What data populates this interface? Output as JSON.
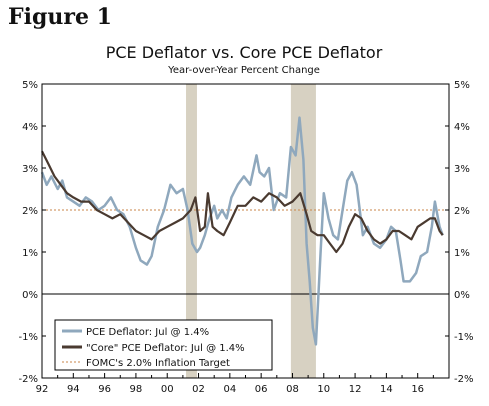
{
  "figure_label": "Figure 1",
  "chart_data": {
    "type": "line",
    "title": "PCE Deflator vs. Core PCE Deflator",
    "subtitle": "Year-over-Year Percent Change",
    "xlabel": "",
    "ylabel": "",
    "xlim": [
      1992,
      2018
    ],
    "ylim": [
      -2,
      5
    ],
    "grid": false,
    "legend_position": "bottom-left",
    "x_ticks": [
      "92",
      "94",
      "96",
      "98",
      "00",
      "02",
      "04",
      "06",
      "08",
      "10",
      "12",
      "14",
      "16"
    ],
    "x_tick_values": [
      1992,
      1994,
      1996,
      1998,
      2000,
      2002,
      2004,
      2006,
      2008,
      2010,
      2012,
      2014,
      2016
    ],
    "y_ticks": [
      "5%",
      "4%",
      "3%",
      "2%",
      "1%",
      "0%",
      "-1%",
      "-2%"
    ],
    "y_tick_values": [
      5,
      4,
      3,
      2,
      1,
      0,
      -1,
      -2
    ],
    "recessions": [
      {
        "start": 2001.2,
        "end": 2001.9
      },
      {
        "start": 2007.9,
        "end": 2009.5
      }
    ],
    "reference_lines": [
      {
        "name": "FOMC's 2.0% Inflation Target",
        "y": 2.0,
        "color": "#c8864a"
      },
      {
        "name": "",
        "y": 0.0,
        "color": "#000000"
      }
    ],
    "series": [
      {
        "name": "PCE Deflator: Jul @ 1.4%",
        "color": "#8fa8bd",
        "points": [
          [
            1992.0,
            2.9
          ],
          [
            1992.3,
            2.6
          ],
          [
            1992.6,
            2.8
          ],
          [
            1993.0,
            2.5
          ],
          [
            1993.3,
            2.7
          ],
          [
            1993.6,
            2.3
          ],
          [
            1994.0,
            2.2
          ],
          [
            1994.4,
            2.1
          ],
          [
            1994.8,
            2.3
          ],
          [
            1995.2,
            2.2
          ],
          [
            1995.6,
            2.0
          ],
          [
            1996.0,
            2.1
          ],
          [
            1996.4,
            2.3
          ],
          [
            1996.8,
            2.0
          ],
          [
            1997.2,
            1.9
          ],
          [
            1997.6,
            1.6
          ],
          [
            1998.0,
            1.1
          ],
          [
            1998.3,
            0.8
          ],
          [
            1998.7,
            0.7
          ],
          [
            1999.0,
            0.9
          ],
          [
            1999.4,
            1.6
          ],
          [
            1999.8,
            2.0
          ],
          [
            2000.2,
            2.6
          ],
          [
            2000.6,
            2.4
          ],
          [
            2001.0,
            2.5
          ],
          [
            2001.3,
            2.0
          ],
          [
            2001.6,
            1.2
          ],
          [
            2001.9,
            1.0
          ],
          [
            2002.1,
            1.1
          ],
          [
            2002.4,
            1.4
          ],
          [
            2002.7,
            1.8
          ],
          [
            2003.0,
            2.1
          ],
          [
            2003.2,
            1.8
          ],
          [
            2003.5,
            2.0
          ],
          [
            2003.8,
            1.8
          ],
          [
            2004.1,
            2.3
          ],
          [
            2004.5,
            2.6
          ],
          [
            2004.9,
            2.8
          ],
          [
            2005.3,
            2.6
          ],
          [
            2005.7,
            3.3
          ],
          [
            2005.9,
            2.9
          ],
          [
            2006.2,
            2.8
          ],
          [
            2006.5,
            3.0
          ],
          [
            2006.8,
            2.0
          ],
          [
            2007.2,
            2.4
          ],
          [
            2007.6,
            2.3
          ],
          [
            2007.9,
            3.5
          ],
          [
            2008.2,
            3.3
          ],
          [
            2008.45,
            4.2
          ],
          [
            2008.7,
            3.2
          ],
          [
            2008.9,
            1.2
          ],
          [
            2009.1,
            0.3
          ],
          [
            2009.3,
            -0.8
          ],
          [
            2009.5,
            -1.2
          ],
          [
            2009.8,
            1.0
          ],
          [
            2010.0,
            2.4
          ],
          [
            2010.3,
            1.8
          ],
          [
            2010.6,
            1.4
          ],
          [
            2010.9,
            1.3
          ],
          [
            2011.2,
            2.0
          ],
          [
            2011.5,
            2.7
          ],
          [
            2011.8,
            2.9
          ],
          [
            2012.1,
            2.6
          ],
          [
            2012.5,
            1.4
          ],
          [
            2012.8,
            1.6
          ],
          [
            2013.2,
            1.2
          ],
          [
            2013.6,
            1.1
          ],
          [
            2014.0,
            1.3
          ],
          [
            2014.3,
            1.6
          ],
          [
            2014.6,
            1.5
          ],
          [
            2014.9,
            0.8
          ],
          [
            2015.1,
            0.3
          ],
          [
            2015.5,
            0.3
          ],
          [
            2015.9,
            0.5
          ],
          [
            2016.2,
            0.9
          ],
          [
            2016.6,
            1.0
          ],
          [
            2016.9,
            1.6
          ],
          [
            2017.1,
            2.2
          ],
          [
            2017.4,
            1.6
          ],
          [
            2017.6,
            1.4
          ]
        ]
      },
      {
        "name": "\"Core\" PCE Deflator: Jul @ 1.4%",
        "color": "#4a3a30",
        "points": [
          [
            1992.0,
            3.4
          ],
          [
            1992.4,
            3.1
          ],
          [
            1992.8,
            2.8
          ],
          [
            1993.2,
            2.6
          ],
          [
            1993.6,
            2.4
          ],
          [
            1994.0,
            2.3
          ],
          [
            1994.5,
            2.2
          ],
          [
            1995.0,
            2.2
          ],
          [
            1995.5,
            2.0
          ],
          [
            1996.0,
            1.9
          ],
          [
            1996.5,
            1.8
          ],
          [
            1997.0,
            1.9
          ],
          [
            1997.5,
            1.7
          ],
          [
            1998.0,
            1.5
          ],
          [
            1998.5,
            1.4
          ],
          [
            1999.0,
            1.3
          ],
          [
            1999.5,
            1.5
          ],
          [
            2000.0,
            1.6
          ],
          [
            2000.5,
            1.7
          ],
          [
            2001.0,
            1.8
          ],
          [
            2001.5,
            2.0
          ],
          [
            2001.8,
            2.3
          ],
          [
            2002.1,
            1.5
          ],
          [
            2002.4,
            1.6
          ],
          [
            2002.6,
            2.4
          ],
          [
            2002.9,
            1.6
          ],
          [
            2003.2,
            1.5
          ],
          [
            2003.6,
            1.4
          ],
          [
            2004.0,
            1.7
          ],
          [
            2004.5,
            2.1
          ],
          [
            2005.0,
            2.1
          ],
          [
            2005.5,
            2.3
          ],
          [
            2006.0,
            2.2
          ],
          [
            2006.5,
            2.4
          ],
          [
            2007.0,
            2.3
          ],
          [
            2007.5,
            2.1
          ],
          [
            2008.0,
            2.2
          ],
          [
            2008.5,
            2.4
          ],
          [
            2008.9,
            1.9
          ],
          [
            2009.2,
            1.5
          ],
          [
            2009.6,
            1.4
          ],
          [
            2010.0,
            1.4
          ],
          [
            2010.4,
            1.2
          ],
          [
            2010.8,
            1.0
          ],
          [
            2011.2,
            1.2
          ],
          [
            2011.6,
            1.6
          ],
          [
            2012.0,
            1.9
          ],
          [
            2012.4,
            1.8
          ],
          [
            2012.8,
            1.5
          ],
          [
            2013.2,
            1.3
          ],
          [
            2013.6,
            1.2
          ],
          [
            2014.0,
            1.3
          ],
          [
            2014.4,
            1.5
          ],
          [
            2014.8,
            1.5
          ],
          [
            2015.2,
            1.4
          ],
          [
            2015.6,
            1.3
          ],
          [
            2016.0,
            1.6
          ],
          [
            2016.4,
            1.7
          ],
          [
            2016.8,
            1.8
          ],
          [
            2017.1,
            1.8
          ],
          [
            2017.4,
            1.5
          ],
          [
            2017.6,
            1.4
          ]
        ]
      }
    ]
  }
}
